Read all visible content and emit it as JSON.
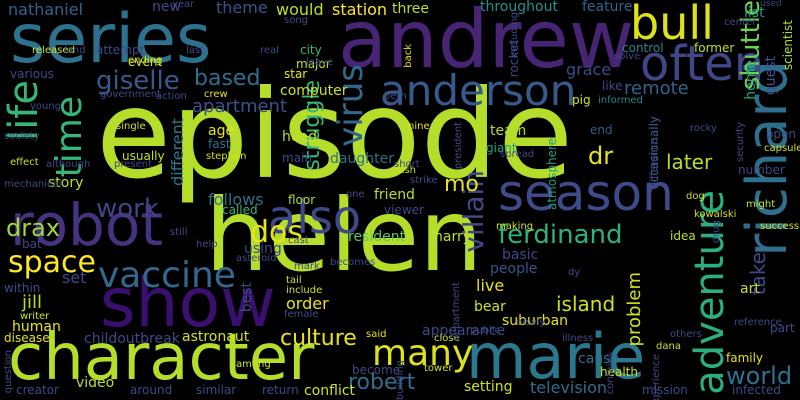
{
  "words": [
    {
      "text": "episode",
      "color": "#b5de2b"
    },
    {
      "text": "helen",
      "color": "#b5de2b"
    },
    {
      "text": "andrew",
      "color": "#482475"
    },
    {
      "text": "series",
      "color": "#2c728e"
    },
    {
      "text": "character",
      "color": "#b5de2b"
    },
    {
      "text": "marie",
      "color": "#2a788e"
    },
    {
      "text": "show",
      "color": "#3b0f70"
    },
    {
      "text": "robot",
      "color": "#46327e"
    },
    {
      "text": "richard",
      "color": "#2e6f8e"
    },
    {
      "text": "season",
      "color": "#3e4a89"
    },
    {
      "text": "often",
      "color": "#3f4788"
    },
    {
      "text": "bull",
      "color": "#dde318"
    },
    {
      "text": "anderson",
      "color": "#38598c"
    },
    {
      "text": "also",
      "color": "#3f4788"
    },
    {
      "text": "adventure",
      "color": "#2ab07f"
    },
    {
      "text": "vaccine",
      "color": "#31688e"
    },
    {
      "text": "many",
      "color": "#dde318"
    },
    {
      "text": "life",
      "color": "#35b779"
    },
    {
      "text": "time",
      "color": "#35b779"
    },
    {
      "text": "virus",
      "color": "#31688e"
    },
    {
      "text": "space",
      "color": "#fde725"
    },
    {
      "text": "dos",
      "color": "#e5e419"
    },
    {
      "text": "world",
      "color": "#2c728e"
    },
    {
      "text": "giselle",
      "color": "#38598c"
    },
    {
      "text": "based",
      "color": "#2e6f8e"
    },
    {
      "text": "ferdinand",
      "color": "#2db27d"
    },
    {
      "text": "villain",
      "color": "#3f4788"
    },
    {
      "text": "shuttle",
      "color": "#6ece58"
    },
    {
      "text": "work",
      "color": "#414487"
    },
    {
      "text": "drax",
      "color": "#9fda3a"
    },
    {
      "text": "mo",
      "color": "#e5e419"
    },
    {
      "text": "dr",
      "color": "#e5e419"
    },
    {
      "text": "struggle",
      "color": "#35b779"
    },
    {
      "text": "robert",
      "color": "#2e6f8e"
    },
    {
      "text": "culture",
      "color": "#e5e419"
    },
    {
      "text": "island",
      "color": "#d0e11c"
    },
    {
      "text": "later",
      "color": "#b5de2b"
    },
    {
      "text": "take",
      "color": "#3e4989"
    },
    {
      "text": "problem",
      "color": "#d0e11c"
    },
    {
      "text": "nathaniel",
      "color": "#33638d"
    },
    {
      "text": "new",
      "color": "#3e4989"
    },
    {
      "text": "theme",
      "color": "#3b528b"
    },
    {
      "text": "would",
      "color": "#bddf26"
    },
    {
      "text": "station",
      "color": "#fde725"
    },
    {
      "text": "three",
      "color": "#bddf26"
    },
    {
      "text": "throughout",
      "color": "#21918c"
    },
    {
      "text": "feature",
      "color": "#33638d"
    },
    {
      "text": "list",
      "color": "#1f9e89"
    },
    {
      "text": "used",
      "color": "#414487"
    },
    {
      "text": "home",
      "color": "#22a884"
    },
    {
      "text": "guest",
      "color": "#3b528b"
    },
    {
      "text": "scientist",
      "color": "#b5de2b"
    },
    {
      "text": "former",
      "color": "#c2df23"
    },
    {
      "text": "control",
      "color": "#24868e"
    },
    {
      "text": "grace",
      "color": "#3e4989"
    },
    {
      "text": "remote",
      "color": "#33638d"
    },
    {
      "text": "computer",
      "color": "#d0e11c"
    },
    {
      "text": "major",
      "color": "#c2df23"
    },
    {
      "text": "city",
      "color": "#35b779"
    },
    {
      "text": "star",
      "color": "#e5e419"
    },
    {
      "text": "pig",
      "color": "#d0e11c"
    },
    {
      "text": "informed",
      "color": "#23898e"
    },
    {
      "text": "apartment",
      "color": "#3b528b"
    },
    {
      "text": "different",
      "color": "#2a788e"
    },
    {
      "text": "follows",
      "color": "#2c728e"
    },
    {
      "text": "age",
      "color": "#e5e419"
    },
    {
      "text": "fast",
      "color": "#2c728e"
    },
    {
      "text": "head",
      "color": "#c2df23"
    },
    {
      "text": "team",
      "color": "#b5de2b"
    },
    {
      "text": "end",
      "color": "#38598c"
    },
    {
      "text": "giant",
      "color": "#1f9e89"
    },
    {
      "text": "atmosphere",
      "color": "#1f9e89"
    },
    {
      "text": "occasionally",
      "color": "#33638d"
    },
    {
      "text": "number",
      "color": "#404688"
    },
    {
      "text": "story",
      "color": "#bddf26"
    },
    {
      "text": "usually",
      "color": "#c2df23"
    },
    {
      "text": "main",
      "color": "#3e4989"
    },
    {
      "text": "daughter",
      "color": "#2e6f8e"
    },
    {
      "text": "friend",
      "color": "#bddf26"
    },
    {
      "text": "viewer",
      "color": "#3e4989"
    },
    {
      "text": "floor",
      "color": "#b5de2b"
    },
    {
      "text": "called",
      "color": "#35b779"
    },
    {
      "text": "harry",
      "color": "#bddf26"
    },
    {
      "text": "resident",
      "color": "#5ec962"
    },
    {
      "text": "basic",
      "color": "#3e4989"
    },
    {
      "text": "people",
      "color": "#3b528b"
    },
    {
      "text": "idea",
      "color": "#c2df23"
    },
    {
      "text": "set",
      "color": "#3e4989"
    },
    {
      "text": "jill",
      "color": "#b5de2b"
    },
    {
      "text": "human",
      "color": "#e5e419"
    },
    {
      "text": "best",
      "color": "#3e4989"
    },
    {
      "text": "order",
      "color": "#e5e419"
    },
    {
      "text": "using",
      "color": "#3e4989"
    },
    {
      "text": "live",
      "color": "#e5e419"
    },
    {
      "text": "bear",
      "color": "#d0e11c"
    },
    {
      "text": "art",
      "color": "#c2df23"
    },
    {
      "text": "becomes",
      "color": "#3e4989"
    },
    {
      "text": "appearance",
      "color": "#3e4989"
    },
    {
      "text": "suburban",
      "color": "#e5e419"
    },
    {
      "text": "astronaut",
      "color": "#d0e11c"
    },
    {
      "text": "childoutbreak",
      "color": "#3e4989"
    },
    {
      "text": "disease",
      "color": "#e5e419"
    },
    {
      "text": "cause",
      "color": "#2e6f8e"
    },
    {
      "text": "health",
      "color": "#d0e11c"
    },
    {
      "text": "family",
      "color": "#e5e419"
    },
    {
      "text": "part",
      "color": "#3e4989"
    },
    {
      "text": "become",
      "color": "#3e4989"
    },
    {
      "text": "setting",
      "color": "#d0e11c"
    },
    {
      "text": "television",
      "color": "#2e6f8e"
    },
    {
      "text": "mission",
      "color": "#3e4989"
    },
    {
      "text": "infected",
      "color": "#3e4989"
    },
    {
      "text": "around",
      "color": "#3e4989"
    },
    {
      "text": "similar",
      "color": "#3e4989"
    },
    {
      "text": "return",
      "color": "#3e4989"
    },
    {
      "text": "conflict",
      "color": "#d0e11c"
    },
    {
      "text": "video",
      "color": "#bddf26"
    },
    {
      "text": "creator",
      "color": "#3e4989"
    },
    {
      "text": "within",
      "color": "#3e4989"
    },
    {
      "text": "writer",
      "color": "#d0e11c"
    },
    {
      "text": "bat",
      "color": "#3e4989"
    },
    {
      "text": "various",
      "color": "#3e4989"
    },
    {
      "text": "released",
      "color": "#d0e11c"
    },
    {
      "text": "attempt",
      "color": "#3e4989"
    },
    {
      "text": "event",
      "color": "#d0e11c"
    },
    {
      "text": "year",
      "color": "#3e4989"
    },
    {
      "text": "song",
      "color": "#3e4989"
    },
    {
      "text": "leave",
      "color": "#3e4989"
    },
    {
      "text": "crew",
      "color": "#e5e419"
    },
    {
      "text": "rocket",
      "color": "#3e4989"
    },
    {
      "text": "back",
      "color": "#e5e419"
    },
    {
      "text": "solve",
      "color": "#3e4989"
    },
    {
      "text": "like",
      "color": "#3e4989"
    },
    {
      "text": "rocky",
      "color": "#3e4989"
    },
    {
      "text": "center",
      "color": "#3e4989"
    },
    {
      "text": "capsule",
      "color": "#d0e11c"
    },
    {
      "text": "open",
      "color": "#3e4989"
    },
    {
      "text": "security",
      "color": "#3e4989"
    },
    {
      "text": "difference",
      "color": "#3e4989"
    },
    {
      "text": "kowalski",
      "color": "#d0e11c"
    },
    {
      "text": "might",
      "color": "#d0e11c"
    },
    {
      "text": "success",
      "color": "#d0e11c"
    },
    {
      "text": "reference",
      "color": "#3e4989"
    },
    {
      "text": "others",
      "color": "#3e4989"
    },
    {
      "text": "dana",
      "color": "#d0e11c"
    },
    {
      "text": "experience",
      "color": "#3e4989"
    },
    {
      "text": "illness",
      "color": "#3e4989"
    },
    {
      "text": "public",
      "color": "#3e4989"
    },
    {
      "text": "newly",
      "color": "#3e4989"
    },
    {
      "text": "close",
      "color": "#d0e11c"
    },
    {
      "text": "said",
      "color": "#e5e419"
    },
    {
      "text": "building",
      "color": "#3e4989"
    },
    {
      "text": "tower",
      "color": "#d0e11c"
    },
    {
      "text": "department",
      "color": "#3e4989"
    },
    {
      "text": "among",
      "color": "#d0e11c"
    },
    {
      "text": "female",
      "color": "#3e4989"
    },
    {
      "text": "include",
      "color": "#d0e11c"
    },
    {
      "text": "tail",
      "color": "#d0e11c"
    },
    {
      "text": "mark",
      "color": "#3e4989"
    },
    {
      "text": "cast",
      "color": "#3e4989"
    },
    {
      "text": "help",
      "color": "#3e4989"
    },
    {
      "text": "asteroid",
      "color": "#3e4989"
    },
    {
      "text": "still",
      "color": "#3e4989"
    },
    {
      "text": "mechanical",
      "color": "#3e4989"
    },
    {
      "text": "effect",
      "color": "#d0e11c"
    },
    {
      "text": "although",
      "color": "#3e4989"
    },
    {
      "text": "present",
      "color": "#3e4989"
    },
    {
      "text": "society",
      "color": "#3e4989"
    },
    {
      "text": "young",
      "color": "#3e4989"
    },
    {
      "text": "government",
      "color": "#3e4989"
    },
    {
      "text": "action",
      "color": "#3e4989"
    },
    {
      "text": "single",
      "color": "#d0e11c"
    },
    {
      "text": "ending",
      "color": "#d0e11c"
    },
    {
      "text": "stephen",
      "color": "#d0e11c"
    },
    {
      "text": "beth",
      "color": "#3e4989"
    },
    {
      "text": "nine",
      "color": "#e5e419"
    },
    {
      "text": "president",
      "color": "#3e4989"
    },
    {
      "text": "rush",
      "color": "#d0e11c"
    },
    {
      "text": "short",
      "color": "#3e4989"
    },
    {
      "text": "spread",
      "color": "#3e4989"
    },
    {
      "text": "one",
      "color": "#3e4989"
    },
    {
      "text": "strike",
      "color": "#3e4989"
    },
    {
      "text": "making",
      "color": "#d0e11c"
    },
    {
      "text": "dy",
      "color": "#3e4989"
    },
    {
      "text": "dog",
      "color": "#d0e11c"
    },
    {
      "text": "drug",
      "color": "#3e4989"
    },
    {
      "text": "contains",
      "color": "#3e4989"
    },
    {
      "text": "question",
      "color": "#3e4989"
    },
    {
      "text": "land",
      "color": "#3e4989"
    },
    {
      "text": "last",
      "color": "#3e4989"
    },
    {
      "text": "real",
      "color": "#3e4989"
    },
    {
      "text": "including",
      "color": "#3e4989"
    }
  ]
}
